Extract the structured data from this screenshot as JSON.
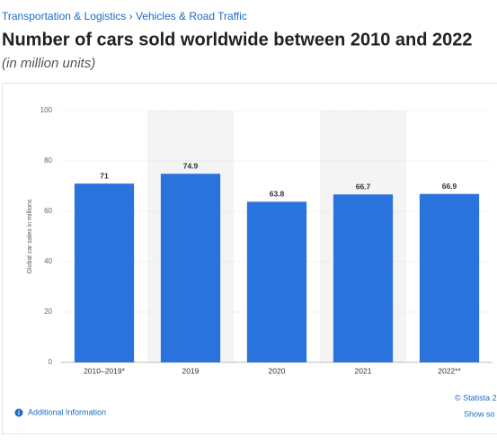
{
  "breadcrumb": "Transportation & Logistics › Vehicles & Road Traffic",
  "source": "© Statista 2",
  "additional_info": "Additional Information",
  "show_source": "Show so",
  "chart_data": {
    "type": "bar",
    "title": "Number of cars sold worldwide between 2010 and 2022",
    "subtitle": "(in million units)",
    "y_label": "Global car sales in millions",
    "categories": [
      "2010–2019*",
      "2019",
      "2020",
      "2021",
      "2022**"
    ],
    "values": [
      71,
      74.9,
      63.8,
      66.7,
      66.9
    ],
    "color": "#2a72dc",
    "ylim": [
      0,
      100
    ],
    "yticks": [
      0,
      20,
      40,
      60,
      80,
      100
    ],
    "grid": true
  }
}
